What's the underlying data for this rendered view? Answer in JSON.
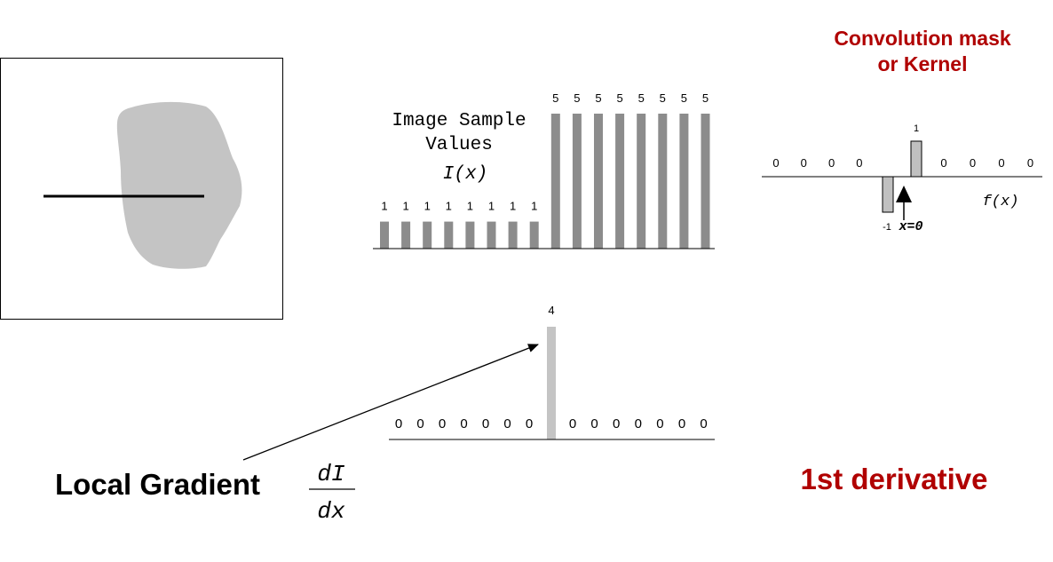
{
  "image_panel": {},
  "samples": {
    "title_line1": "Image Sample",
    "title_line2": "Values",
    "func_label": "I(x)",
    "values": [
      1,
      1,
      1,
      1,
      1,
      1,
      1,
      1,
      5,
      5,
      5,
      5,
      5,
      5,
      5,
      5
    ]
  },
  "kernel": {
    "title_line1": "Convolution mask",
    "title_line2": "or Kernel",
    "left_zeros": [
      0,
      0,
      0,
      0
    ],
    "right_zeros": [
      0,
      0,
      0,
      0
    ],
    "neg_label": "-1",
    "pos_label": "1",
    "origin_label": "x=0",
    "func_label": "f(x)"
  },
  "derivative": {
    "left_zeros": [
      0,
      0,
      0,
      0,
      0,
      0,
      0
    ],
    "right_zeros": [
      0,
      0,
      0,
      0,
      0,
      0,
      0
    ],
    "peak_label": "4",
    "peak_value": 4
  },
  "labels": {
    "local_gradient": "Local Gradient",
    "frac_num": "dI",
    "frac_den": "dx",
    "first_derivative": "1st derivative"
  },
  "colors": {
    "bar": "#8c8c8c",
    "peak_bar": "#c4c4c4",
    "kernel_bar": "#c0c0c0",
    "blob": "#c4c4c4",
    "title_red": "#b00000"
  }
}
